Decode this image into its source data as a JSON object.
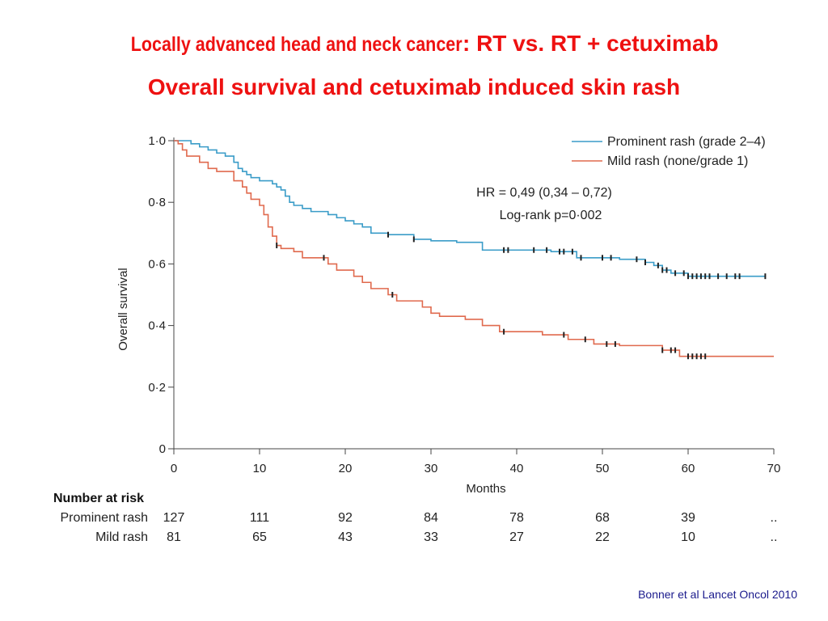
{
  "slide": {
    "title_part1": "Locally advanced head and neck cancer",
    "title_part2": ": RT vs. RT + cetuximab",
    "subtitle": "Overall survival and cetuximab induced skin rash",
    "citation": "Bonner et al Lancet Oncol 2010"
  },
  "chart_data": {
    "type": "line",
    "subtype": "kaplan-meier",
    "xlabel": "Months",
    "ylabel": "Overall survival",
    "xlim": [
      0,
      70
    ],
    "ylim": [
      0,
      1.0
    ],
    "xticks": [
      "0",
      "10",
      "20",
      "30",
      "40",
      "50",
      "60",
      "70"
    ],
    "yticks": [
      "0",
      "0·2",
      "0·4",
      "0·6",
      "0·8",
      "1·0"
    ],
    "annotation_hr": "HR = 0,49 (0,34 – 0,72)",
    "annotation_p": "Log-rank p=0·002",
    "series": [
      {
        "name": "Prominent rash (grade 2–4)",
        "color": "#3a9cc8",
        "steps": [
          [
            0,
            1.0
          ],
          [
            2,
            0.99
          ],
          [
            3,
            0.98
          ],
          [
            4,
            0.97
          ],
          [
            5,
            0.96
          ],
          [
            6,
            0.95
          ],
          [
            7,
            0.93
          ],
          [
            7.5,
            0.91
          ],
          [
            8,
            0.9
          ],
          [
            8.5,
            0.89
          ],
          [
            9,
            0.88
          ],
          [
            10,
            0.87
          ],
          [
            11.5,
            0.86
          ],
          [
            12,
            0.85
          ],
          [
            12.5,
            0.84
          ],
          [
            13,
            0.82
          ],
          [
            13.5,
            0.8
          ],
          [
            14,
            0.79
          ],
          [
            15,
            0.78
          ],
          [
            16,
            0.77
          ],
          [
            18,
            0.76
          ],
          [
            19,
            0.75
          ],
          [
            20,
            0.74
          ],
          [
            21,
            0.73
          ],
          [
            22,
            0.72
          ],
          [
            23,
            0.7
          ],
          [
            25,
            0.695
          ],
          [
            28,
            0.68
          ],
          [
            30,
            0.675
          ],
          [
            33,
            0.67
          ],
          [
            36,
            0.645
          ],
          [
            44,
            0.64
          ],
          [
            47,
            0.62
          ],
          [
            52,
            0.615
          ],
          [
            55,
            0.605
          ],
          [
            56,
            0.595
          ],
          [
            57,
            0.58
          ],
          [
            58,
            0.57
          ],
          [
            60,
            0.56
          ]
        ],
        "end": 69,
        "censored": [
          25,
          28,
          38.5,
          39,
          42,
          43.5,
          45,
          45.5,
          46.5,
          47.5,
          50,
          51,
          54,
          55,
          56.5,
          57,
          57.5,
          58.5,
          59.5,
          60,
          60.5,
          61,
          61.5,
          62,
          62.5,
          63.5,
          64.5,
          65.5,
          66,
          69
        ]
      },
      {
        "name": "Mild rash (none/grade 1)",
        "color": "#e06a4e",
        "steps": [
          [
            0,
            1.0
          ],
          [
            0.5,
            0.99
          ],
          [
            1,
            0.97
          ],
          [
            1.5,
            0.95
          ],
          [
            3,
            0.93
          ],
          [
            4,
            0.91
          ],
          [
            5,
            0.9
          ],
          [
            7,
            0.87
          ],
          [
            8,
            0.85
          ],
          [
            8.5,
            0.83
          ],
          [
            9,
            0.81
          ],
          [
            10,
            0.79
          ],
          [
            10.5,
            0.76
          ],
          [
            11,
            0.72
          ],
          [
            11.5,
            0.69
          ],
          [
            12,
            0.66
          ],
          [
            12.5,
            0.65
          ],
          [
            14,
            0.64
          ],
          [
            15,
            0.62
          ],
          [
            18,
            0.6
          ],
          [
            19,
            0.58
          ],
          [
            21,
            0.56
          ],
          [
            22,
            0.54
          ],
          [
            23,
            0.52
          ],
          [
            25,
            0.5
          ],
          [
            26,
            0.48
          ],
          [
            29,
            0.46
          ],
          [
            30,
            0.44
          ],
          [
            31,
            0.43
          ],
          [
            34,
            0.42
          ],
          [
            36,
            0.4
          ],
          [
            38,
            0.38
          ],
          [
            43,
            0.37
          ],
          [
            46,
            0.355
          ],
          [
            49,
            0.34
          ],
          [
            52,
            0.335
          ],
          [
            57,
            0.32
          ],
          [
            59,
            0.3
          ]
        ],
        "end": 70,
        "censored": [
          12,
          17.5,
          25.5,
          38.5,
          45.5,
          48,
          50.5,
          51.5,
          57,
          58,
          58.5,
          60,
          60.5,
          61,
          61.5,
          62
        ]
      }
    ],
    "number_at_risk": {
      "header": "Number at risk",
      "rows": [
        {
          "label": "Prominent rash",
          "values": [
            "127",
            "111",
            "92",
            "84",
            "78",
            "68",
            "39",
            ".."
          ]
        },
        {
          "label": "Mild rash",
          "values": [
            "81",
            "65",
            "43",
            "33",
            "27",
            "22",
            "10",
            ".."
          ]
        }
      ]
    }
  }
}
